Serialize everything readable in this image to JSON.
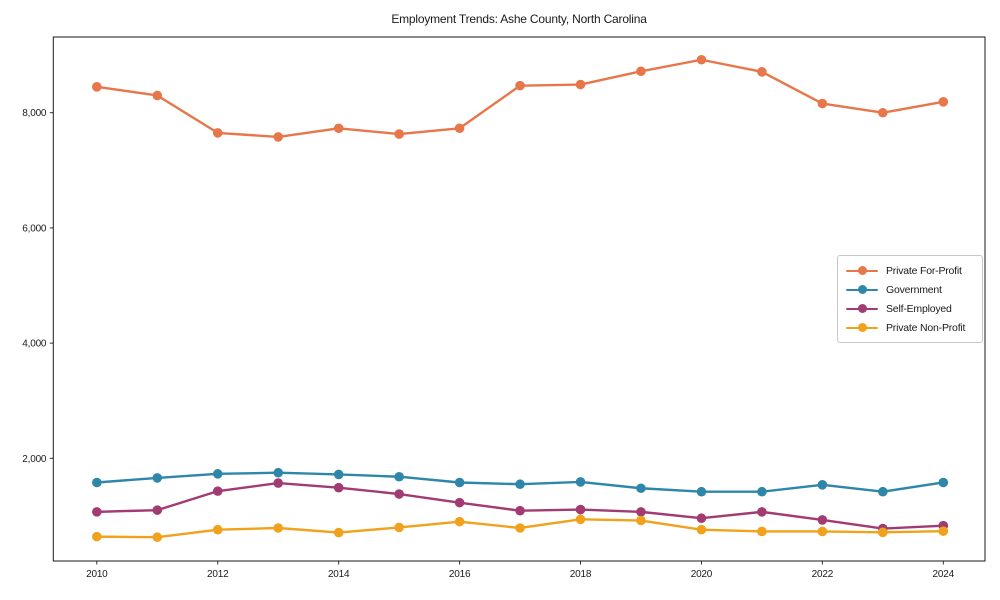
{
  "chart_data": {
    "type": "line",
    "title": "Employment Trends: Ashe County, North Carolina",
    "x": [
      2010,
      2011,
      2012,
      2013,
      2014,
      2015,
      2016,
      2017,
      2018,
      2019,
      2020,
      2021,
      2022,
      2023,
      2024
    ],
    "series": [
      {
        "name": "Private For-Profit",
        "color": "#E8764B",
        "values": [
          8450,
          8300,
          7650,
          7580,
          7730,
          7630,
          7730,
          8470,
          8490,
          8720,
          8920,
          8710,
          8160,
          8000,
          8190
        ]
      },
      {
        "name": "Government",
        "color": "#2E86A8",
        "values": [
          1580,
          1660,
          1730,
          1750,
          1720,
          1680,
          1580,
          1550,
          1590,
          1480,
          1420,
          1420,
          1540,
          1420,
          1580
        ]
      },
      {
        "name": "Self-Employed",
        "color": "#A23B72",
        "values": [
          1070,
          1100,
          1430,
          1570,
          1490,
          1380,
          1230,
          1090,
          1110,
          1070,
          960,
          1070,
          930,
          780,
          830
        ]
      },
      {
        "name": "Private Non-Profit",
        "color": "#F1A21C",
        "values": [
          640,
          630,
          760,
          790,
          710,
          800,
          900,
          790,
          940,
          920,
          760,
          730,
          730,
          715,
          735
        ]
      }
    ],
    "xticks": [
      2010,
      2012,
      2014,
      2016,
      2018,
      2020,
      2022,
      2024
    ],
    "xtick_labels": [
      "2010",
      "2012",
      "2014",
      "2016",
      "2018",
      "2020",
      "2022",
      "2024"
    ],
    "yticks": [
      2000,
      4000,
      6000,
      8000
    ],
    "ytick_labels": [
      "2,000",
      "4,000",
      "6,000",
      "8,000"
    ],
    "xlim": [
      2009.28,
      2024.69
    ],
    "ylim": [
      217,
      9315
    ],
    "grid": false,
    "legend_position": "center right",
    "marker": "circle",
    "axis_color": "#1a1a1a",
    "background": "#ffffff"
  }
}
